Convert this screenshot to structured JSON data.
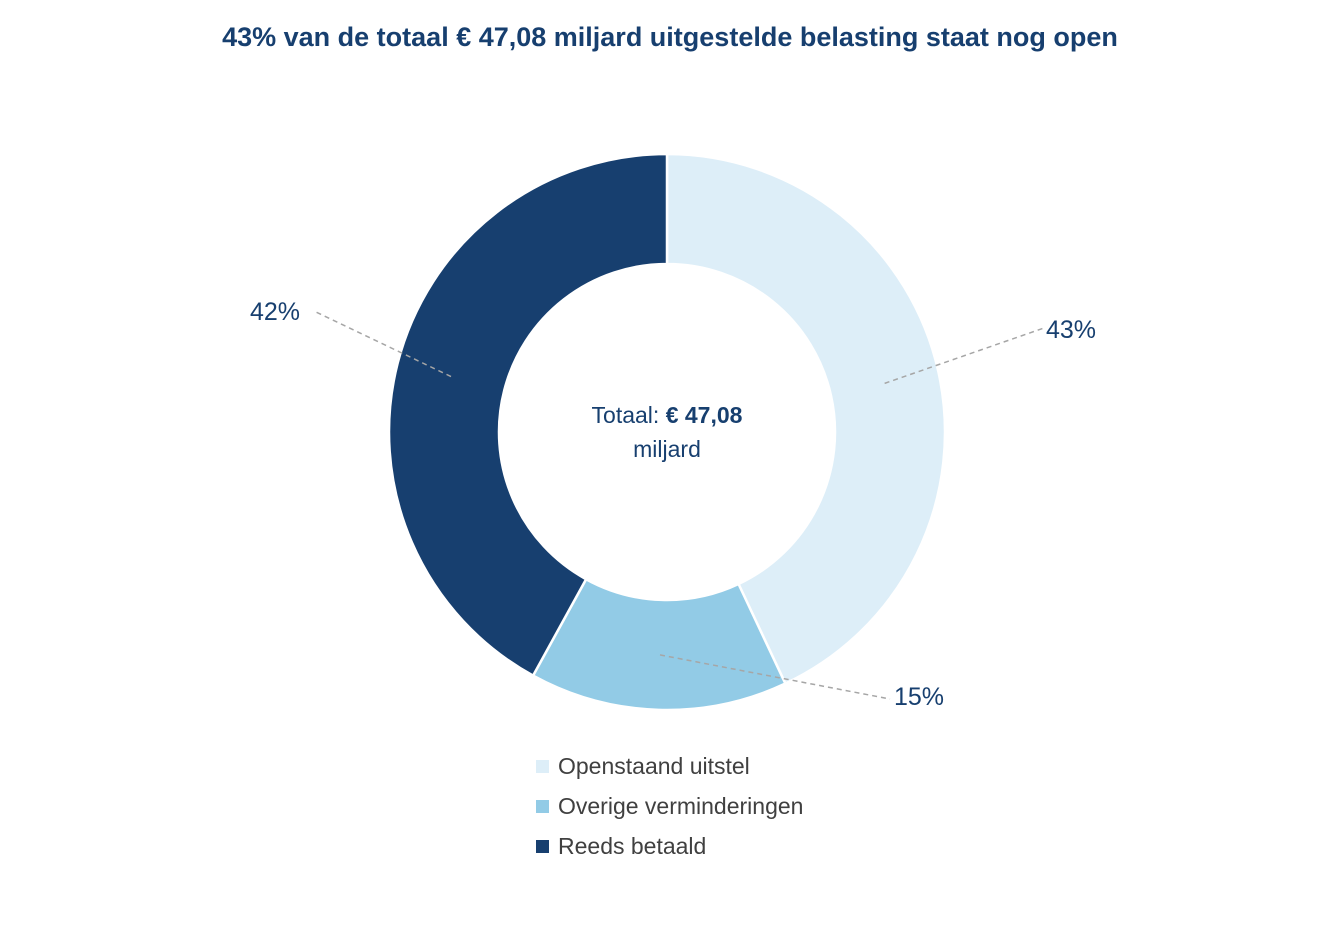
{
  "chart_data": {
    "type": "pie",
    "title": "43% van de totaal € 47,08 miljard uitgestelde belasting staat nog open",
    "center_label": {
      "prefix": "Totaal:",
      "value": "€ 47,08",
      "suffix": "miljard"
    },
    "categories": [
      "Openstaand uitstel",
      "Overige verminderingen",
      "Reeds betaald"
    ],
    "values": [
      43,
      15,
      42
    ],
    "labels": [
      "43%",
      "15%",
      "42%"
    ],
    "colors": [
      "#ddeef8",
      "#92cbe6",
      "#173f6f"
    ],
    "legend_position": "bottom"
  }
}
